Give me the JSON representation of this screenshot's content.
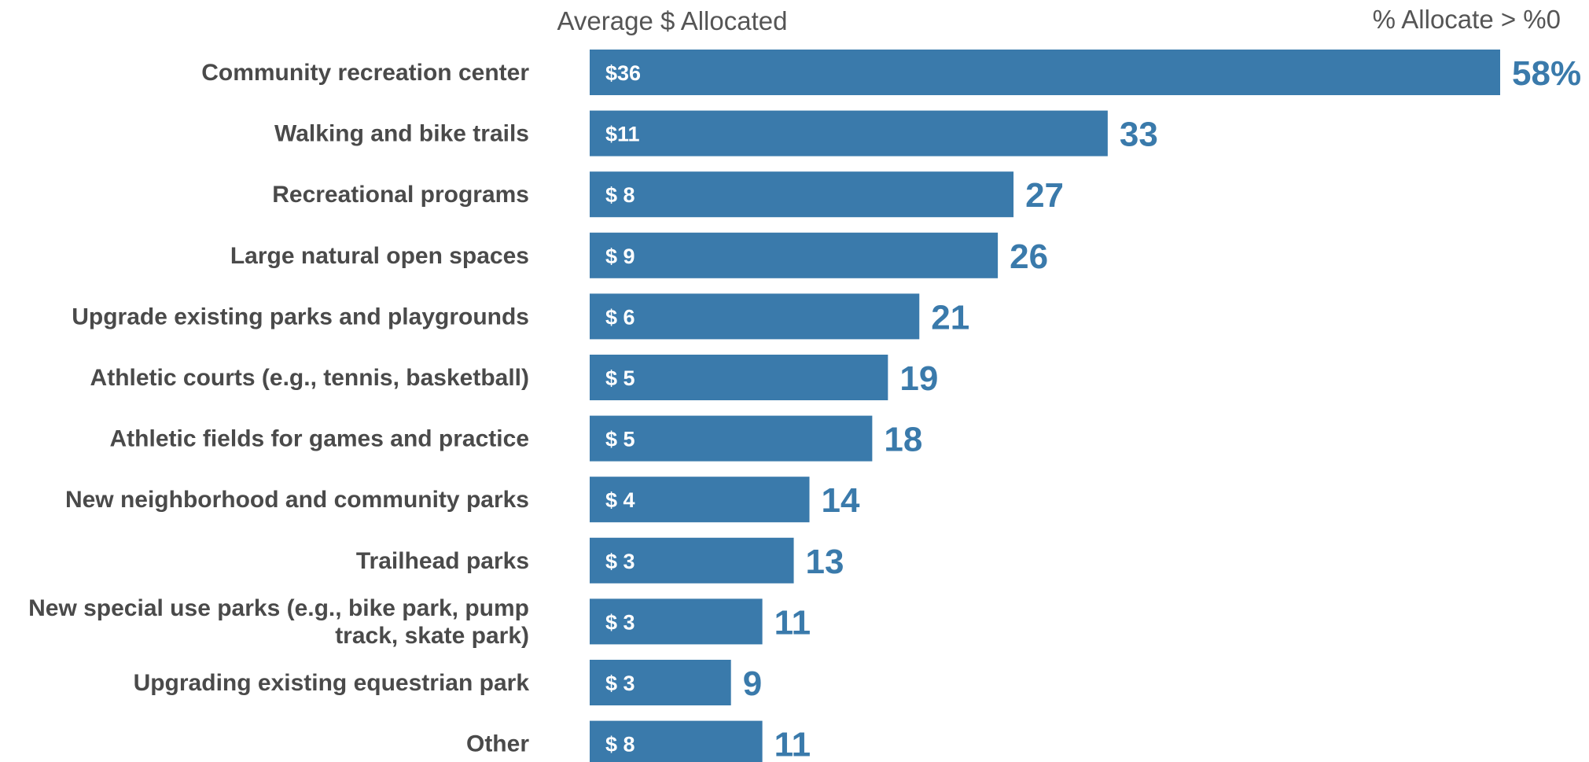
{
  "header": {
    "left_title": "Average $ Allocated",
    "right_title": "% Allocate > %0"
  },
  "colors": {
    "bar": "#3a7aab",
    "label": "#4a4a4a",
    "header": "#555555"
  },
  "chart_data": {
    "type": "bar",
    "orientation": "horizontal",
    "xlim": [
      0,
      58
    ],
    "categories": [
      "Community recreation center",
      "Walking and bike trails",
      "Recreational programs",
      "Large natural open spaces",
      "Upgrade existing parks and playgrounds",
      "Athletic courts (e.g., tennis, basketball)",
      "Athletic fields for games and practice",
      "New neighborhood and community parks",
      "Trailhead parks",
      "New special use parks (e.g., bike park, pump track, skate park)",
      "Upgrading existing equestrian park",
      "Other"
    ],
    "category_lines": [
      [
        "Community recreation center"
      ],
      [
        "Walking and bike trails"
      ],
      [
        "Recreational programs"
      ],
      [
        "Large natural open spaces"
      ],
      [
        "Upgrade existing parks and playgrounds"
      ],
      [
        "Athletic courts (e.g., tennis, basketball)"
      ],
      [
        "Athletic fields for games and practice"
      ],
      [
        "New neighborhood and community parks"
      ],
      [
        "Trailhead parks"
      ],
      [
        "New special use parks (e.g., bike park, pump",
        "track, skate park)"
      ],
      [
        "Upgrading existing equestrian park"
      ],
      [
        "Other"
      ]
    ],
    "percent_allocated": [
      58,
      33,
      27,
      26,
      21,
      19,
      18,
      14,
      13,
      11,
      9,
      11
    ],
    "percent_labels": [
      "58%",
      "33",
      "27",
      "26",
      "21",
      "19",
      "18",
      "14",
      "13",
      "11",
      "9",
      "11"
    ],
    "average_dollars": [
      36,
      11,
      8,
      9,
      6,
      5,
      5,
      4,
      3,
      3,
      3,
      8
    ],
    "dollar_labels": [
      "$36",
      "$11",
      "$ 8",
      "$ 9",
      "$ 6",
      "$ 5",
      "$ 5",
      "$ 4",
      "$ 3",
      "$ 3",
      "$ 3",
      "$ 8"
    ]
  }
}
